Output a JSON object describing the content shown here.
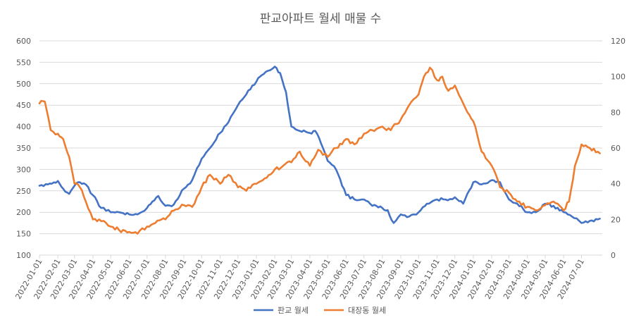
{
  "chart_data": {
    "type": "line",
    "title": "판교아파트 월세 매물 수",
    "x_tick_labels": [
      "2022-01-01",
      "2022-02-01",
      "2022-03-01",
      "2022-04-01",
      "2022-05-01",
      "2022-06-01",
      "2022-07-01",
      "2022-08-01",
      "2022-09-01",
      "2022-10-01",
      "2022-11-01",
      "2022-12-01",
      "2023-01-01",
      "2023-02-01",
      "2023-03-01",
      "2023-04-01",
      "2023-05-01",
      "2023-06-01",
      "2023-07-01",
      "2023-08-01",
      "2023-09-01",
      "2023-10-01",
      "2023-11-01",
      "2023-12-01",
      "2024-01-01",
      "2024-02-01",
      "2024-03-01",
      "2024-04-01",
      "2024-05-01",
      "2024-06-01",
      "2024-07-01"
    ],
    "y_left": {
      "ticks": [
        "100",
        "150",
        "200",
        "250",
        "300",
        "350",
        "400",
        "450",
        "500",
        "550",
        "600"
      ],
      "range": [
        100,
        600
      ]
    },
    "y_right": {
      "ticks": [
        "0",
        "20",
        "40",
        "60",
        "80",
        "100",
        "120"
      ],
      "range": [
        0,
        120
      ]
    },
    "grid": true,
    "legend_position": "bottom",
    "series": [
      {
        "name": "판교 월세",
        "axis": "left",
        "color": "#4472C4",
        "x": [
          "2022-01-01",
          "2022-01-15",
          "2022-02-01",
          "2022-02-10",
          "2022-02-20",
          "2022-03-01",
          "2022-03-10",
          "2022-03-20",
          "2022-04-01",
          "2022-04-15",
          "2022-05-01",
          "2022-05-15",
          "2022-06-01",
          "2022-06-15",
          "2022-07-01",
          "2022-07-10",
          "2022-07-20",
          "2022-08-01",
          "2022-08-15",
          "2022-09-01",
          "2022-09-15",
          "2022-10-01",
          "2022-10-15",
          "2022-11-01",
          "2022-11-15",
          "2022-12-01",
          "2022-12-15",
          "2023-01-01",
          "2023-01-10",
          "2023-01-20",
          "2023-02-01",
          "2023-02-10",
          "2023-02-20",
          "2023-03-01",
          "2023-03-15",
          "2023-04-01",
          "2023-04-10",
          "2023-04-20",
          "2023-05-01",
          "2023-05-15",
          "2023-06-01",
          "2023-06-15",
          "2023-07-01",
          "2023-07-15",
          "2023-08-01",
          "2023-08-10",
          "2023-08-20",
          "2023-09-01",
          "2023-09-15",
          "2023-10-01",
          "2023-10-15",
          "2023-11-01",
          "2023-11-15",
          "2023-12-01",
          "2023-12-15",
          "2024-01-01",
          "2024-01-15",
          "2024-02-01",
          "2024-02-15",
          "2024-03-01",
          "2024-03-15",
          "2024-04-01",
          "2024-04-15",
          "2024-05-01",
          "2024-05-15",
          "2024-06-01",
          "2024-06-15",
          "2024-07-01",
          "2024-07-15",
          "2024-08-01"
        ],
        "values": [
          262,
          265,
          273,
          255,
          243,
          262,
          270,
          265,
          240,
          210,
          200,
          200,
          195,
          195,
          210,
          225,
          238,
          215,
          218,
          255,
          275,
          325,
          350,
          385,
          410,
          450,
          475,
          505,
          520,
          530,
          540,
          525,
          480,
          400,
          390,
          385,
          390,
          360,
          320,
          300,
          240,
          230,
          230,
          215,
          210,
          205,
          175,
          195,
          190,
          200,
          220,
          230,
          230,
          235,
          220,
          270,
          265,
          275,
          270,
          230,
          220,
          200,
          200,
          220,
          215,
          200,
          190,
          175,
          180,
          185
        ]
      },
      {
        "name": "대장동 월세",
        "axis": "right",
        "color": "#ED7D31",
        "x": [
          "2022-01-01",
          "2022-01-10",
          "2022-01-20",
          "2022-02-01",
          "2022-02-10",
          "2022-02-20",
          "2022-03-01",
          "2022-03-10",
          "2022-03-20",
          "2022-04-01",
          "2022-04-15",
          "2022-05-01",
          "2022-05-15",
          "2022-06-01",
          "2022-06-15",
          "2022-07-01",
          "2022-07-15",
          "2022-08-01",
          "2022-08-15",
          "2022-09-01",
          "2022-09-15",
          "2022-10-01",
          "2022-10-15",
          "2022-11-01",
          "2022-11-15",
          "2022-12-01",
          "2022-12-15",
          "2023-01-01",
          "2023-01-15",
          "2023-02-01",
          "2023-02-15",
          "2023-03-01",
          "2023-03-15",
          "2023-04-01",
          "2023-04-15",
          "2023-05-01",
          "2023-05-15",
          "2023-06-01",
          "2023-06-15",
          "2023-07-01",
          "2023-07-15",
          "2023-08-01",
          "2023-08-15",
          "2023-09-01",
          "2023-09-15",
          "2023-10-01",
          "2023-10-10",
          "2023-10-20",
          "2023-11-01",
          "2023-11-10",
          "2023-11-20",
          "2023-12-01",
          "2023-12-15",
          "2024-01-01",
          "2024-01-15",
          "2024-02-01",
          "2024-02-15",
          "2024-03-01",
          "2024-03-15",
          "2024-04-01",
          "2024-04-15",
          "2024-05-01",
          "2024-05-15",
          "2024-06-01",
          "2024-06-10",
          "2024-06-20",
          "2024-07-01",
          "2024-07-15",
          "2024-08-01"
        ],
        "values": [
          85,
          86,
          70,
          68,
          65,
          55,
          40,
          38,
          30,
          20,
          19,
          16,
          14,
          13,
          12,
          16,
          18,
          20,
          25,
          28,
          27,
          38,
          45,
          40,
          45,
          38,
          36,
          40,
          43,
          48,
          50,
          52,
          58,
          50,
          59,
          55,
          60,
          65,
          62,
          68,
          70,
          72,
          70,
          76,
          84,
          90,
          100,
          105,
          98,
          100,
          92,
          95,
          85,
          75,
          58,
          50,
          38,
          35,
          30,
          27,
          25,
          28,
          30,
          25,
          30,
          50,
          62,
          60,
          57
        ]
      }
    ]
  }
}
